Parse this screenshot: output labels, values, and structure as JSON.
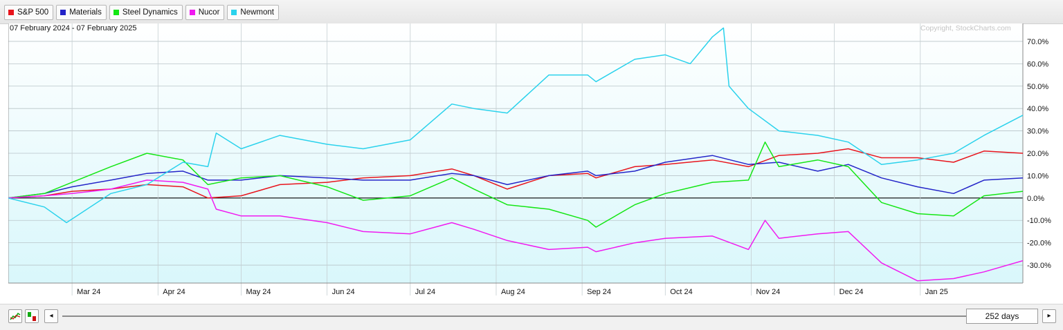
{
  "legend": [
    {
      "label": "S&P 500",
      "color": "#e8141c"
    },
    {
      "label": "Materials",
      "color": "#2323c8"
    },
    {
      "label": "Steel Dynamics",
      "color": "#14e614"
    },
    {
      "label": "Nucor",
      "color": "#f01af0"
    },
    {
      "label": "Newmont",
      "color": "#2ad2ec"
    }
  ],
  "date_range": "07 February 2024 - 07 February 2025",
  "copyright": "Copyright, StockCharts.com",
  "controls": {
    "days_label": "252 days",
    "scroll_left_icon": "◂",
    "scroll_right_icon": "▸"
  },
  "chart_data": {
    "type": "line",
    "title": "07 February 2024 - 07 February 2025",
    "xlim": [
      "2024-02-07",
      "2025-02-07"
    ],
    "ylim": [
      -38,
      78
    ],
    "y_unit": "%",
    "y_ticks": [
      70,
      60,
      50,
      40,
      30,
      20,
      10,
      0,
      -10,
      -20,
      -30
    ],
    "y_tick_labels": [
      "70.0%",
      "60.0%",
      "50.0%",
      "40.0%",
      "30.0%",
      "20.0%",
      "10.0%",
      "0.0%",
      "-10.0%",
      "-20.0%",
      "-30.0%"
    ],
    "x_ticks": [
      {
        "date": "2024-03-01",
        "label": "Mar 24"
      },
      {
        "date": "2024-04-01",
        "label": "Apr 24"
      },
      {
        "date": "2024-05-01",
        "label": "May 24"
      },
      {
        "date": "2024-06-01",
        "label": "Jun 24"
      },
      {
        "date": "2024-07-01",
        "label": "Jul 24"
      },
      {
        "date": "2024-08-01",
        "label": "Aug 24"
      },
      {
        "date": "2024-09-01",
        "label": "Sep 24"
      },
      {
        "date": "2024-10-01",
        "label": "Oct 24"
      },
      {
        "date": "2024-11-01",
        "label": "Nov 24"
      },
      {
        "date": "2024-12-01",
        "label": "Dec 24"
      },
      {
        "date": "2025-01-01",
        "label": "Jan 25"
      }
    ],
    "axis_position": "right",
    "grid": true,
    "legend_position": "top-left",
    "series": [
      {
        "name": "S&P 500",
        "color": "#e8141c",
        "points": [
          [
            "2024-02-07",
            0
          ],
          [
            "2024-02-20",
            1
          ],
          [
            "2024-03-01",
            3
          ],
          [
            "2024-03-15",
            4
          ],
          [
            "2024-03-28",
            6
          ],
          [
            "2024-04-10",
            5
          ],
          [
            "2024-04-19",
            0
          ],
          [
            "2024-05-01",
            1
          ],
          [
            "2024-05-15",
            6
          ],
          [
            "2024-06-01",
            7
          ],
          [
            "2024-06-14",
            9
          ],
          [
            "2024-07-01",
            10
          ],
          [
            "2024-07-16",
            13
          ],
          [
            "2024-07-24",
            10
          ],
          [
            "2024-08-05",
            4
          ],
          [
            "2024-08-20",
            10
          ],
          [
            "2024-09-03",
            11
          ],
          [
            "2024-09-06",
            9
          ],
          [
            "2024-09-20",
            14
          ],
          [
            "2024-10-01",
            15
          ],
          [
            "2024-10-18",
            17
          ],
          [
            "2024-10-31",
            14
          ],
          [
            "2024-11-11",
            19
          ],
          [
            "2024-11-25",
            20
          ],
          [
            "2024-12-06",
            22
          ],
          [
            "2024-12-18",
            18
          ],
          [
            "2024-12-31",
            18
          ],
          [
            "2025-01-13",
            16
          ],
          [
            "2025-01-24",
            21
          ],
          [
            "2025-02-07",
            20
          ]
        ]
      },
      {
        "name": "Materials",
        "color": "#2323c8",
        "points": [
          [
            "2024-02-07",
            0
          ],
          [
            "2024-02-20",
            2
          ],
          [
            "2024-03-01",
            5
          ],
          [
            "2024-03-15",
            8
          ],
          [
            "2024-03-28",
            11
          ],
          [
            "2024-04-10",
            12
          ],
          [
            "2024-04-19",
            8
          ],
          [
            "2024-05-01",
            8
          ],
          [
            "2024-05-15",
            10
          ],
          [
            "2024-06-01",
            9
          ],
          [
            "2024-06-14",
            8
          ],
          [
            "2024-07-01",
            8
          ],
          [
            "2024-07-16",
            11
          ],
          [
            "2024-07-24",
            10
          ],
          [
            "2024-08-05",
            6
          ],
          [
            "2024-08-20",
            10
          ],
          [
            "2024-09-03",
            12
          ],
          [
            "2024-09-06",
            10
          ],
          [
            "2024-09-20",
            12
          ],
          [
            "2024-10-01",
            16
          ],
          [
            "2024-10-18",
            19
          ],
          [
            "2024-10-31",
            15
          ],
          [
            "2024-11-11",
            16
          ],
          [
            "2024-11-25",
            12
          ],
          [
            "2024-12-06",
            15
          ],
          [
            "2024-12-18",
            9
          ],
          [
            "2024-12-31",
            5
          ],
          [
            "2025-01-13",
            2
          ],
          [
            "2025-01-24",
            8
          ],
          [
            "2025-02-07",
            9
          ]
        ]
      },
      {
        "name": "Steel Dynamics",
        "color": "#14e614",
        "points": [
          [
            "2024-02-07",
            0
          ],
          [
            "2024-02-20",
            2
          ],
          [
            "2024-03-01",
            7
          ],
          [
            "2024-03-15",
            14
          ],
          [
            "2024-03-28",
            20
          ],
          [
            "2024-04-10",
            17
          ],
          [
            "2024-04-19",
            6
          ],
          [
            "2024-05-01",
            9
          ],
          [
            "2024-05-15",
            10
          ],
          [
            "2024-06-01",
            5
          ],
          [
            "2024-06-14",
            -1
          ],
          [
            "2024-07-01",
            1
          ],
          [
            "2024-07-16",
            9
          ],
          [
            "2024-07-24",
            4
          ],
          [
            "2024-08-05",
            -3
          ],
          [
            "2024-08-20",
            -5
          ],
          [
            "2024-09-03",
            -10
          ],
          [
            "2024-09-06",
            -13
          ],
          [
            "2024-09-20",
            -3
          ],
          [
            "2024-10-01",
            2
          ],
          [
            "2024-10-18",
            7
          ],
          [
            "2024-10-31",
            8
          ],
          [
            "2024-11-06",
            25
          ],
          [
            "2024-11-11",
            14
          ],
          [
            "2024-11-25",
            17
          ],
          [
            "2024-12-06",
            14
          ],
          [
            "2024-12-18",
            -2
          ],
          [
            "2024-12-31",
            -7
          ],
          [
            "2025-01-13",
            -8
          ],
          [
            "2025-01-24",
            1
          ],
          [
            "2025-02-07",
            3
          ]
        ]
      },
      {
        "name": "Nucor",
        "color": "#f01af0",
        "points": [
          [
            "2024-02-07",
            0
          ],
          [
            "2024-02-20",
            1
          ],
          [
            "2024-03-01",
            2
          ],
          [
            "2024-03-15",
            4
          ],
          [
            "2024-03-28",
            8
          ],
          [
            "2024-04-10",
            7
          ],
          [
            "2024-04-19",
            4
          ],
          [
            "2024-04-22",
            -5
          ],
          [
            "2024-05-01",
            -8
          ],
          [
            "2024-05-15",
            -8
          ],
          [
            "2024-06-01",
            -11
          ],
          [
            "2024-06-14",
            -15
          ],
          [
            "2024-07-01",
            -16
          ],
          [
            "2024-07-16",
            -11
          ],
          [
            "2024-07-24",
            -14
          ],
          [
            "2024-08-05",
            -19
          ],
          [
            "2024-08-20",
            -23
          ],
          [
            "2024-09-03",
            -22
          ],
          [
            "2024-09-06",
            -24
          ],
          [
            "2024-09-20",
            -20
          ],
          [
            "2024-10-01",
            -18
          ],
          [
            "2024-10-18",
            -17
          ],
          [
            "2024-10-31",
            -23
          ],
          [
            "2024-11-06",
            -10
          ],
          [
            "2024-11-11",
            -18
          ],
          [
            "2024-11-25",
            -16
          ],
          [
            "2024-12-06",
            -15
          ],
          [
            "2024-12-18",
            -29
          ],
          [
            "2024-12-31",
            -37
          ],
          [
            "2025-01-13",
            -36
          ],
          [
            "2025-01-24",
            -33
          ],
          [
            "2025-02-07",
            -28
          ]
        ]
      },
      {
        "name": "Newmont",
        "color": "#2ad2ec",
        "points": [
          [
            "2024-02-07",
            0
          ],
          [
            "2024-02-20",
            -4
          ],
          [
            "2024-02-28",
            -11
          ],
          [
            "2024-03-15",
            2
          ],
          [
            "2024-03-28",
            6
          ],
          [
            "2024-04-10",
            16
          ],
          [
            "2024-04-19",
            14
          ],
          [
            "2024-04-22",
            29
          ],
          [
            "2024-05-01",
            22
          ],
          [
            "2024-05-15",
            28
          ],
          [
            "2024-06-01",
            24
          ],
          [
            "2024-06-14",
            22
          ],
          [
            "2024-07-01",
            26
          ],
          [
            "2024-07-16",
            42
          ],
          [
            "2024-07-24",
            40
          ],
          [
            "2024-08-05",
            38
          ],
          [
            "2024-08-20",
            55
          ],
          [
            "2024-09-03",
            55
          ],
          [
            "2024-09-06",
            52
          ],
          [
            "2024-09-20",
            62
          ],
          [
            "2024-10-01",
            64
          ],
          [
            "2024-10-10",
            60
          ],
          [
            "2024-10-18",
            72
          ],
          [
            "2024-10-22",
            76
          ],
          [
            "2024-10-24",
            50
          ],
          [
            "2024-10-31",
            40
          ],
          [
            "2024-11-11",
            30
          ],
          [
            "2024-11-25",
            28
          ],
          [
            "2024-12-06",
            25
          ],
          [
            "2024-12-18",
            15
          ],
          [
            "2024-12-31",
            17
          ],
          [
            "2025-01-13",
            20
          ],
          [
            "2025-01-24",
            28
          ],
          [
            "2025-02-07",
            37
          ]
        ]
      }
    ]
  }
}
